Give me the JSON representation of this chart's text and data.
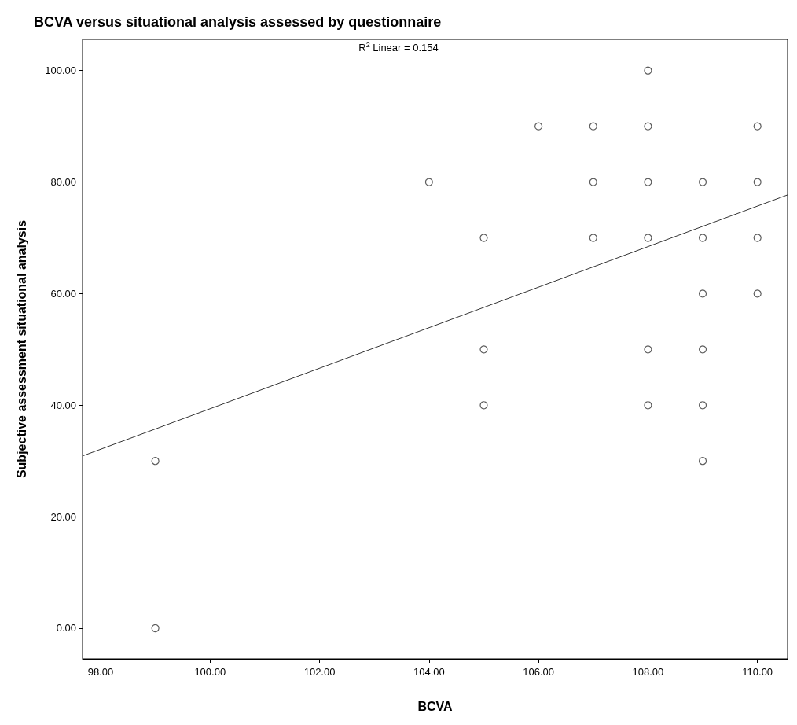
{
  "chart_data": {
    "type": "scatter",
    "title": "BCVA versus situational analysis assessed by questionnaire",
    "xlabel": "BCVA",
    "ylabel": "Subjective assessment situational analysis",
    "annotations": [
      "R$^{2}$ Linear = 0.154"
    ],
    "series": [
      {
        "color": "#333333",
        "x": [
          99,
          99,
          104,
          105,
          105,
          105,
          106,
          107,
          107,
          107,
          108,
          108,
          108,
          108,
          108,
          108,
          109,
          109,
          109,
          109,
          109,
          109,
          110,
          110,
          110,
          110
        ],
        "values": [
          30,
          0,
          80,
          70,
          50,
          40,
          90,
          90,
          80,
          70,
          100,
          90,
          80,
          70,
          50,
          40,
          80,
          70,
          60,
          50,
          40,
          30,
          90,
          80,
          70,
          60
        ]
      },
      {
        "type": "line",
        "marker": "none",
        "color": "#333333",
        "x": [
          97.67,
          110.55
        ],
        "values": [
          30.9,
          77.7
        ]
      }
    ],
    "xlim": [
      97.67,
      110.55
    ],
    "ylim": [
      -5.5,
      105.6
    ],
    "xticks": [
      {
        "value": 98,
        "label": "98.00"
      },
      {
        "value": 100,
        "label": "100.00"
      },
      {
        "value": 102,
        "label": "102.00"
      },
      {
        "value": 104,
        "label": "104.00"
      },
      {
        "value": 106,
        "label": "106.00"
      },
      {
        "value": 108,
        "label": "108.00"
      },
      {
        "value": 110,
        "label": "110.00"
      }
    ],
    "yticks": [
      {
        "value": 0,
        "label": "0.00"
      },
      {
        "value": 20,
        "label": "20.00"
      },
      {
        "value": 40,
        "label": "40.00"
      },
      {
        "value": 60,
        "label": "60.00"
      },
      {
        "value": 80,
        "label": "80.00"
      },
      {
        "value": 100,
        "label": "100.00"
      }
    ],
    "grid": false,
    "marker": "circle",
    "line_style": "solid"
  }
}
